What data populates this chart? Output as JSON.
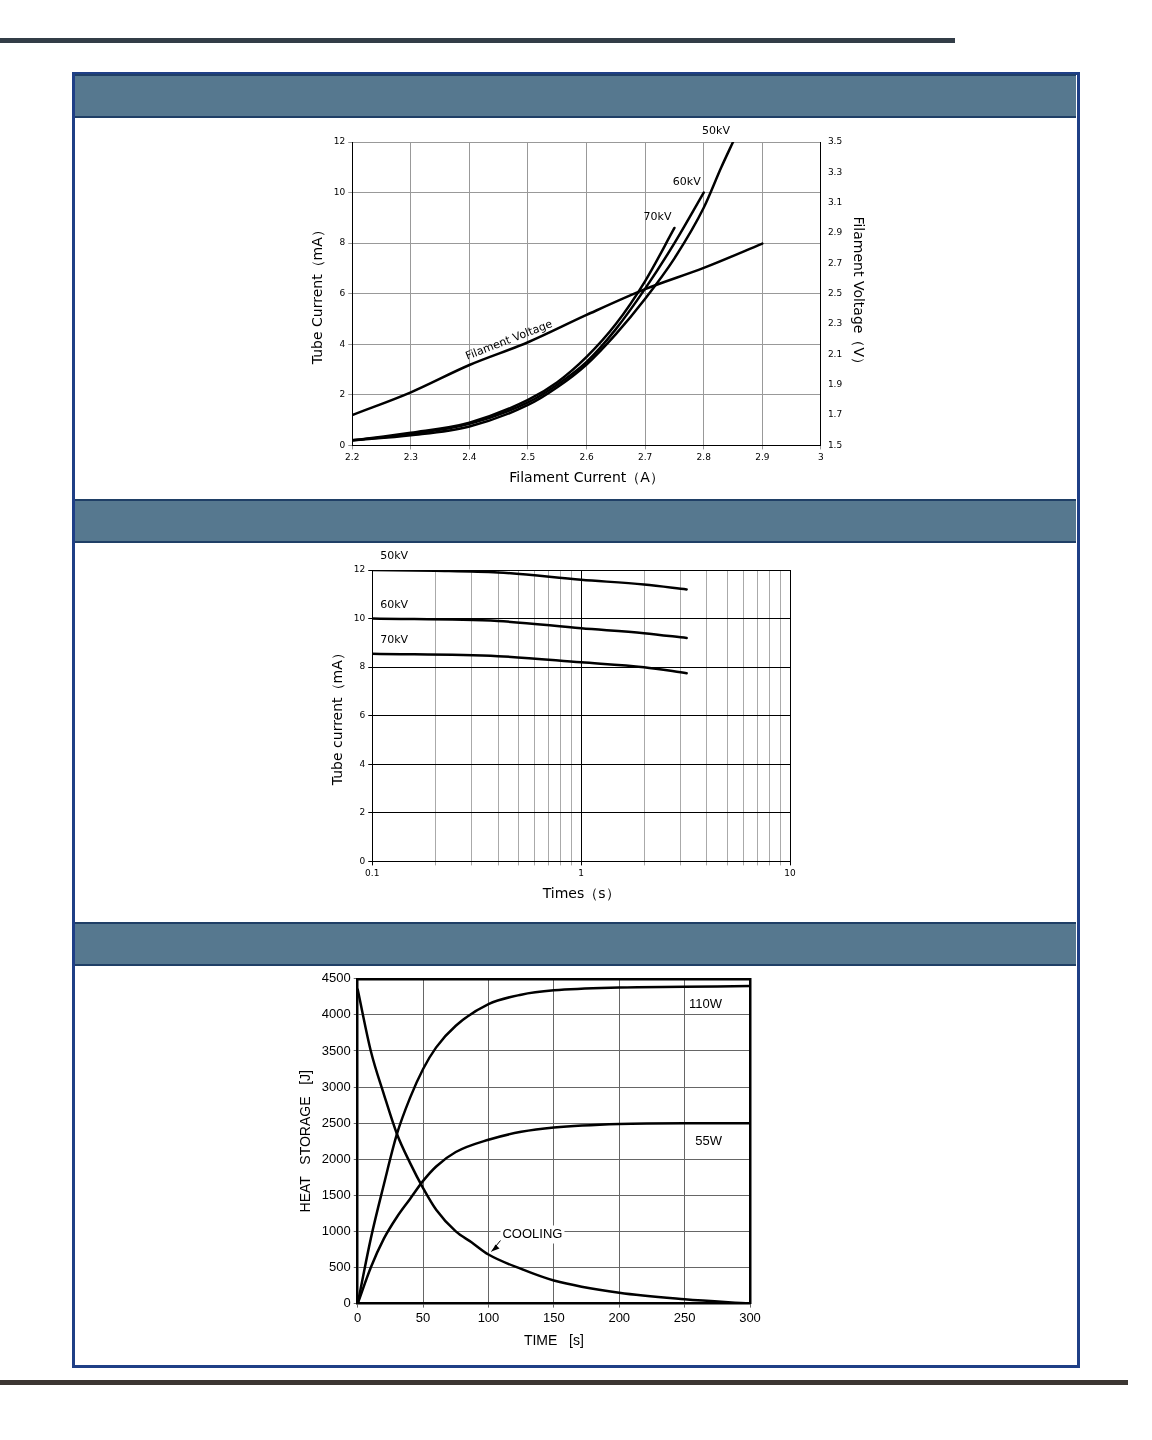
{
  "chart_data": [
    {
      "type": "line",
      "xlabel": "Filament Current（A）",
      "ylabel": "Tube Current（mA）",
      "y2label": "Filament Voltage（V）",
      "xlim": [
        2.2,
        3
      ],
      "xticks": [
        2.2,
        2.3,
        2.4,
        2.5,
        2.6,
        2.7,
        2.8,
        2.9,
        3
      ],
      "ylim": [
        0,
        12
      ],
      "yticks": [
        0,
        2,
        4,
        6,
        8,
        10,
        12
      ],
      "y2lim": [
        1.5,
        3.5
      ],
      "y2ticks": [
        1.5,
        1.7,
        1.9,
        2.1,
        2.3,
        2.5,
        2.7,
        2.9,
        3.1,
        3.3,
        3.5
      ],
      "grid": true,
      "marker": "none",
      "line_style": "solid",
      "series": [
        {
          "name": "70kV",
          "color": "#000000",
          "x": [
            2.2,
            2.3,
            2.4,
            2.5,
            2.55,
            2.6,
            2.65,
            2.7,
            2.75
          ],
          "values": [
            0.2,
            0.5,
            0.9,
            1.8,
            2.5,
            3.5,
            4.8,
            6.5,
            8.6
          ]
        },
        {
          "name": "60kV",
          "color": "#000000",
          "x": [
            2.2,
            2.3,
            2.4,
            2.5,
            2.55,
            2.6,
            2.65,
            2.7,
            2.75,
            2.8
          ],
          "values": [
            0.2,
            0.45,
            0.85,
            1.7,
            2.4,
            3.3,
            4.6,
            6.2,
            8.0,
            10
          ]
        },
        {
          "name": "50kV",
          "color": "#000000",
          "x": [
            2.2,
            2.3,
            2.4,
            2.5,
            2.55,
            2.6,
            2.65,
            2.7,
            2.75,
            2.8,
            2.83,
            2.85
          ],
          "values": [
            0.2,
            0.4,
            0.75,
            1.6,
            2.3,
            3.2,
            4.4,
            5.8,
            7.4,
            9.4,
            11,
            12
          ]
        },
        {
          "name": "Filament Voltage",
          "color": "#000000",
          "axis": "y2",
          "x": [
            2.2,
            2.3,
            2.4,
            2.5,
            2.6,
            2.7,
            2.8,
            2.9
          ],
          "values": [
            1.7,
            1.85,
            2.03,
            2.18,
            2.36,
            2.53,
            2.67,
            2.83
          ]
        }
      ]
    },
    {
      "type": "line",
      "xlabel": "Times（s）",
      "ylabel": "Tube current（mA）",
      "log": "x",
      "xlim": [
        0.1,
        10
      ],
      "xticks": [
        0.1,
        {
          "value": 0.2,
          "label": null
        },
        {
          "value": 0.3,
          "label": null
        },
        {
          "value": 0.4,
          "label": null
        },
        {
          "value": 0.5,
          "label": null
        },
        {
          "value": 0.6,
          "label": null
        },
        {
          "value": 0.7,
          "label": null
        },
        {
          "value": 0.8,
          "label": null
        },
        {
          "value": 0.9,
          "label": null
        },
        1,
        {
          "value": 2,
          "label": null
        },
        {
          "value": 3,
          "label": null
        },
        {
          "value": 4,
          "label": null
        },
        {
          "value": 5,
          "label": null
        },
        {
          "value": 6,
          "label": null
        },
        {
          "value": 7,
          "label": null
        },
        {
          "value": 8,
          "label": null
        },
        {
          "value": 9,
          "label": null
        },
        10
      ],
      "ylim": [
        0,
        12
      ],
      "yticks": [
        0,
        2,
        4,
        6,
        8,
        10,
        12
      ],
      "grid": true,
      "marker": "none",
      "line_style": "solid",
      "series": [
        {
          "name": "50kV",
          "color": "#000000",
          "x": [
            0.1,
            0.2,
            0.4,
            1,
            2,
            3.2
          ],
          "values": [
            12,
            11.97,
            11.9,
            11.6,
            11.4,
            11.2
          ]
        },
        {
          "name": "60kV",
          "color": "#000000",
          "x": [
            0.1,
            0.4,
            1,
            2,
            3.2
          ],
          "values": [
            10,
            9.9,
            9.6,
            9.4,
            9.2
          ]
        },
        {
          "name": "70kV",
          "color": "#000000",
          "x": [
            0.1,
            0.4,
            1,
            2,
            3.2
          ],
          "values": [
            8.55,
            8.45,
            8.2,
            8.0,
            7.75
          ]
        }
      ]
    },
    {
      "type": "line",
      "xlabel": "TIME   [s]",
      "ylabel": "HEAT   STORAGE   [J]",
      "xlim": [
        0,
        300
      ],
      "xticks": [
        0,
        50,
        100,
        150,
        200,
        250,
        300
      ],
      "ylim": [
        0,
        4500
      ],
      "yticks": [
        0,
        500,
        1000,
        1500,
        2000,
        2500,
        3000,
        3500,
        4000,
        4500
      ],
      "grid": true,
      "marker": "none",
      "line_style": "solid",
      "series": [
        {
          "name": "110W",
          "color": "#000000",
          "x": [
            0,
            10,
            20,
            30,
            40,
            50,
            60,
            75,
            100,
            125,
            150,
            200,
            250,
            300
          ],
          "values": [
            0,
            900,
            1650,
            2350,
            2850,
            3250,
            3550,
            3850,
            4150,
            4280,
            4340,
            4380,
            4390,
            4400
          ]
        },
        {
          "name": "55W",
          "color": "#000000",
          "x": [
            0,
            10,
            20,
            30,
            40,
            50,
            60,
            75,
            100,
            125,
            150,
            200,
            250,
            300
          ],
          "values": [
            0,
            500,
            900,
            1200,
            1450,
            1700,
            1900,
            2100,
            2270,
            2380,
            2440,
            2490,
            2500,
            2500
          ]
        },
        {
          "name": "COOLING",
          "color": "#000000",
          "x": [
            0,
            10,
            20,
            30,
            40,
            50,
            60,
            75,
            87,
            100,
            125,
            150,
            200,
            250,
            300
          ],
          "values": [
            4350,
            3500,
            2900,
            2350,
            1950,
            1600,
            1300,
            1000,
            850,
            680,
            480,
            320,
            150,
            60,
            0
          ]
        }
      ]
    }
  ]
}
